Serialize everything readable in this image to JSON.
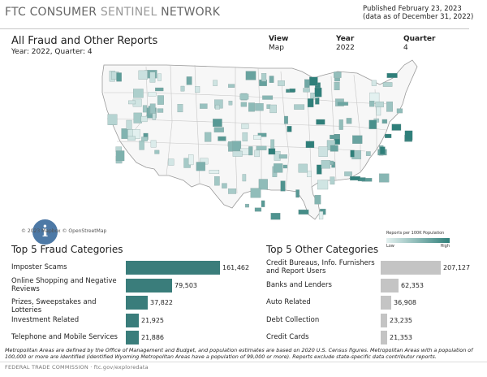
{
  "header": {
    "brand_bold": "FTC CONSUMER",
    "brand_thin": "SENTINEL",
    "brand_end": "NETWORK",
    "published": "Published February 23, 2023",
    "data_as_of": "(data as of December 31, 2022)"
  },
  "report": {
    "title": "All Fraud and Other Reports",
    "subtitle": "Year: 2022, Quarter: 4"
  },
  "filters": [
    {
      "label": "View",
      "value": "Map"
    },
    {
      "label": "Year",
      "value": "2022"
    },
    {
      "label": "Quarter",
      "value": "4"
    }
  ],
  "map": {
    "legend_title": "Reports per 100K Population",
    "legend_low": "Low",
    "legend_high": "High",
    "credit": "© 2023 Mapbox © OpenStreetMap",
    "info_icon": "info-icon",
    "colors": {
      "low": "#e4f1f0",
      "high": "#2f7f7a",
      "state_border": "#9a9a9a"
    }
  },
  "fraud": {
    "title": "Top 5 Fraud Categories",
    "max": 161462,
    "items": [
      {
        "label": "Imposter Scams",
        "value": 161462,
        "display": "161,462"
      },
      {
        "label": "Online Shopping and Negative Reviews",
        "value": 79503,
        "display": "79,503"
      },
      {
        "label": "Prizes, Sweepstakes and Lotteries",
        "value": 37822,
        "display": "37,822"
      },
      {
        "label": "Investment Related",
        "value": 21925,
        "display": "21,925"
      },
      {
        "label": "Telephone and Mobile Services",
        "value": 21886,
        "display": "21,886"
      }
    ]
  },
  "other": {
    "title": "Top 5 Other Categories",
    "max": 207127,
    "items": [
      {
        "label": "Credit Bureaus, Info. Furnishers and Report Users",
        "value": 207127,
        "display": "207,127"
      },
      {
        "label": "Banks and Lenders",
        "value": 62353,
        "display": "62,353"
      },
      {
        "label": "Auto Related",
        "value": 36908,
        "display": "36,908"
      },
      {
        "label": "Debt Collection",
        "value": 23235,
        "display": "23,235"
      },
      {
        "label": "Credit Cards",
        "value": 21353,
        "display": "21,353"
      }
    ]
  },
  "footnote": "Metropolitan Areas are defined by the Office of Management and Budget, and population estimates are based on 2020 U.S. Census figures. Metropolitan Areas with a population of 100,000 or more are identified (identified Wyoming Metropolitan Areas have a population of 99,000 or more). Reports exclude state-specific data contributor reports.",
  "footer": "FEDERAL TRADE COMMISSION · ftc.gov/exploredata"
}
